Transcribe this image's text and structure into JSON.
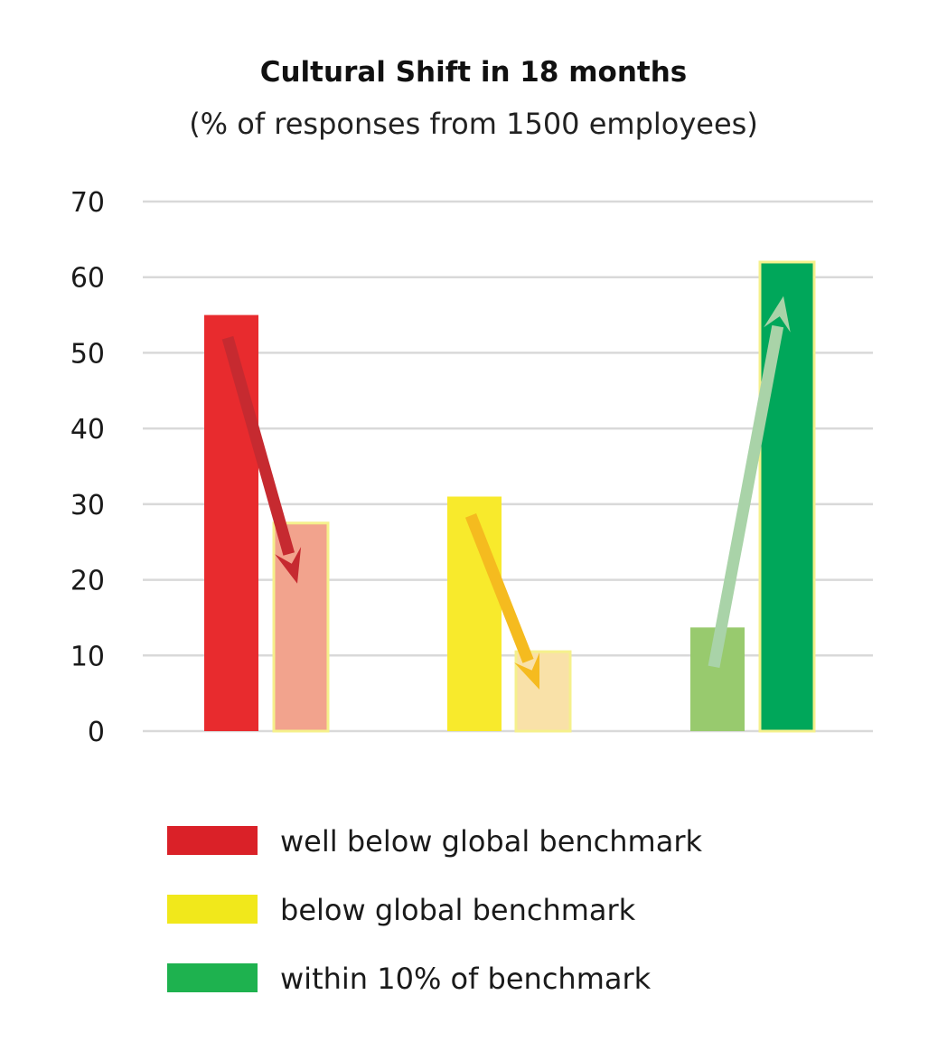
{
  "chart_data": {
    "type": "bar",
    "title": "Cultural Shift in 18 months",
    "subtitle": "(% of responses from 1500 employees)",
    "xlabel": "",
    "ylabel": "",
    "ylim": [
      0,
      70
    ],
    "yticks": [
      0,
      10,
      20,
      30,
      40,
      50,
      60,
      70
    ],
    "grid": true,
    "legend_position": "bottom",
    "groups": [
      {
        "key": "well-below",
        "color": "#e82b2e",
        "before": {
          "value": 55,
          "color": "#e82b2e"
        },
        "after": {
          "value": 27.5,
          "color": "#f2a38d"
        },
        "arrow": {
          "from": 52,
          "to": 19.5,
          "direction": "down",
          "color": "#c62a30"
        }
      },
      {
        "key": "below",
        "color": "#f8ea2c",
        "before": {
          "value": 31,
          "color": "#f8ea2c"
        },
        "after": {
          "value": 10.5,
          "color": "#f9e1a8"
        },
        "arrow": {
          "from": 28.5,
          "to": 5.5,
          "direction": "down",
          "color": "#f5bb1f"
        }
      },
      {
        "key": "within-10",
        "color": "#00a75a",
        "before": {
          "value": 13.7,
          "color": "#98ca6e"
        },
        "after": {
          "value": 62,
          "color": "#00a75a"
        },
        "arrow": {
          "from": 8.5,
          "to": 57.5,
          "direction": "up",
          "color": "#a9d3a8"
        }
      }
    ],
    "legend": [
      {
        "label": "well below global benchmark",
        "color": "#da2128"
      },
      {
        "label": "below global benchmark",
        "color": "#f1e81b"
      },
      {
        "label": "within 10% of benchmark",
        "color": "#1eb24f"
      }
    ],
    "colors": {
      "grid": "#d9d9d9",
      "text": "#1a1a1a",
      "outline": "#f5f08c"
    }
  }
}
